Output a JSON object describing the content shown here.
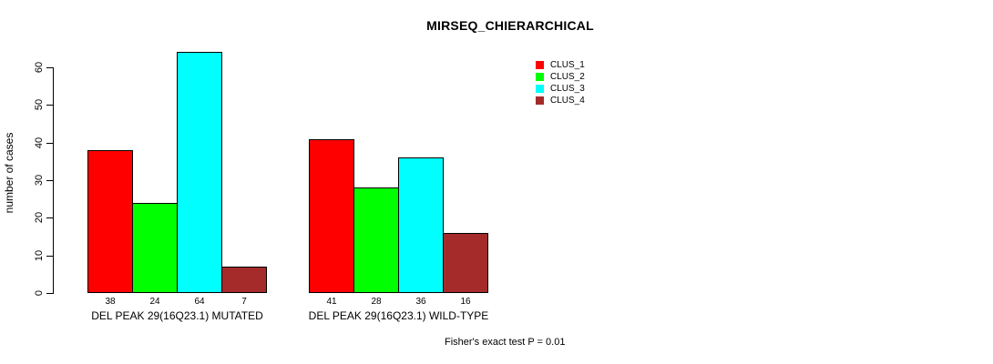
{
  "chart_data": {
    "type": "bar",
    "title": "MIRSEQ_CHIERARCHICAL",
    "xlabel": "",
    "ylabel": "number of cases",
    "categories": [
      "DEL PEAK 29(16Q23.1) MUTATED",
      "DEL PEAK 29(16Q23.1) WILD-TYPE"
    ],
    "series": [
      {
        "name": "CLUS_1",
        "color": "#FF0000",
        "values": [
          38,
          41
        ]
      },
      {
        "name": "CLUS_2",
        "color": "#00FF00",
        "values": [
          24,
          28
        ]
      },
      {
        "name": "CLUS_3",
        "color": "#00FFFF",
        "values": [
          64,
          36
        ]
      },
      {
        "name": "CLUS_4",
        "color": "#A52A2A",
        "values": [
          7,
          16
        ]
      }
    ],
    "bar_value_labels": [
      [
        38,
        24,
        64,
        7
      ],
      [
        41,
        28,
        36,
        16
      ]
    ],
    "yticks": [
      0,
      10,
      20,
      30,
      40,
      50,
      60
    ],
    "ylim": [
      0,
      64
    ],
    "grid": false,
    "legend_position": "top-right",
    "legend_entries": [
      "CLUS_1",
      "CLUS_2",
      "CLUS_3",
      "CLUS_4"
    ],
    "annotation": "Fisher's exact test P = 0.01",
    "bar_border_color": "#000000",
    "axis_color": "#000000",
    "background_color": "#FFFFFF"
  }
}
